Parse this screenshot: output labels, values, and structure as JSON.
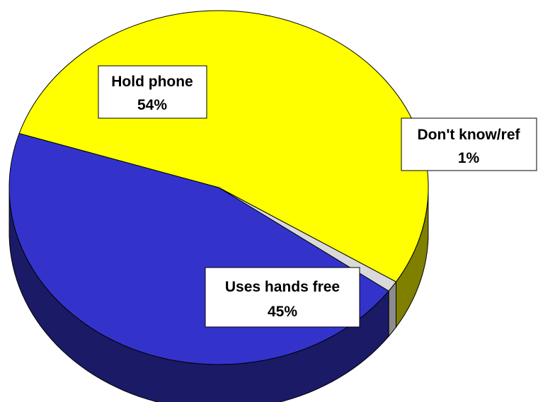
{
  "chart_data": {
    "type": "pie",
    "title": "",
    "slices": [
      {
        "label": "Hold phone",
        "value": 54,
        "value_text": "54%",
        "color": "#ffff00",
        "side_color": "#7f7f00"
      },
      {
        "label": "Don't know/ref",
        "value": 1,
        "value_text": "1%",
        "color": "#d9d9d9",
        "side_color": "#8c8c8c"
      },
      {
        "label": "Uses hands free",
        "value": 45,
        "value_text": "45%",
        "color": "#3333cc",
        "side_color": "#1a1a66"
      }
    ],
    "style": "3d"
  }
}
